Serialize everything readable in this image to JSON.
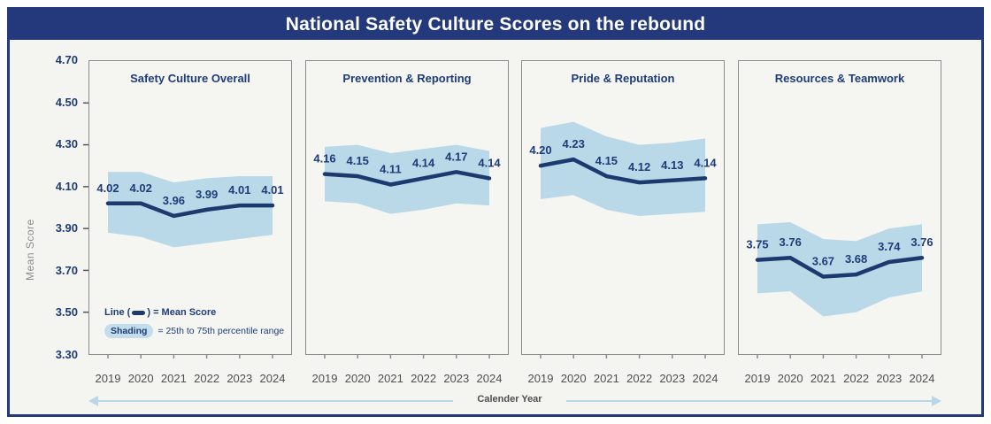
{
  "title": "National Safety Culture Scores on the rebound",
  "legend": {
    "line_prefix": "Line (",
    "line_suffix": ") = Mean Score",
    "shading_word": "Shading",
    "shading_rest": "= 25th to 75th percentile range"
  },
  "colors": {
    "banner_navy": "#24397b",
    "line_navy": "#1d3a6e",
    "label_navy": "#1e3c78",
    "band_blue": "#b9d8e8",
    "background": "#f4f4f1",
    "panel_border": "#8c8c8c",
    "year_gray": "#4f4f4f",
    "axis_gray": "#8c8c8c",
    "arrow_blue": "#b9d7e7"
  },
  "chart_data": {
    "type": "line",
    "categories": [
      "2019",
      "2020",
      "2021",
      "2022",
      "2023",
      "2024"
    ],
    "ylim": [
      3.3,
      4.7
    ],
    "yticks": [
      "4.70",
      "4.50",
      "4.30",
      "4.10",
      "3.90",
      "3.70",
      "3.50",
      "3.30"
    ],
    "ylabel": "Mean Score",
    "xlabel": "Calender Year",
    "grid": false,
    "legend_position": "bottom-left of first panel",
    "band_meaning": "25th to 75th percentile range",
    "panels": [
      {
        "title": "Safety Culture Overall",
        "mean": [
          4.02,
          4.02,
          3.96,
          3.99,
          4.01,
          4.01
        ],
        "band_upper": [
          4.17,
          4.17,
          4.12,
          4.14,
          4.15,
          4.15
        ],
        "band_lower": [
          3.88,
          3.86,
          3.81,
          3.83,
          3.85,
          3.87
        ]
      },
      {
        "title": "Prevention & Reporting",
        "mean": [
          4.16,
          4.15,
          4.11,
          4.14,
          4.17,
          4.14
        ],
        "band_upper": [
          4.29,
          4.3,
          4.26,
          4.28,
          4.3,
          4.27
        ],
        "band_lower": [
          4.03,
          4.02,
          3.97,
          3.99,
          4.02,
          4.01
        ]
      },
      {
        "title": "Pride & Reputation",
        "mean": [
          4.2,
          4.23,
          4.15,
          4.12,
          4.13,
          4.14
        ],
        "band_upper": [
          4.38,
          4.41,
          4.34,
          4.3,
          4.31,
          4.33
        ],
        "band_lower": [
          4.04,
          4.06,
          3.99,
          3.96,
          3.97,
          3.98
        ]
      },
      {
        "title": "Resources & Teamwork",
        "mean": [
          3.75,
          3.76,
          3.67,
          3.68,
          3.74,
          3.76
        ],
        "band_upper": [
          3.92,
          3.93,
          3.85,
          3.84,
          3.9,
          3.92
        ],
        "band_lower": [
          3.59,
          3.6,
          3.48,
          3.5,
          3.57,
          3.6
        ]
      }
    ]
  }
}
